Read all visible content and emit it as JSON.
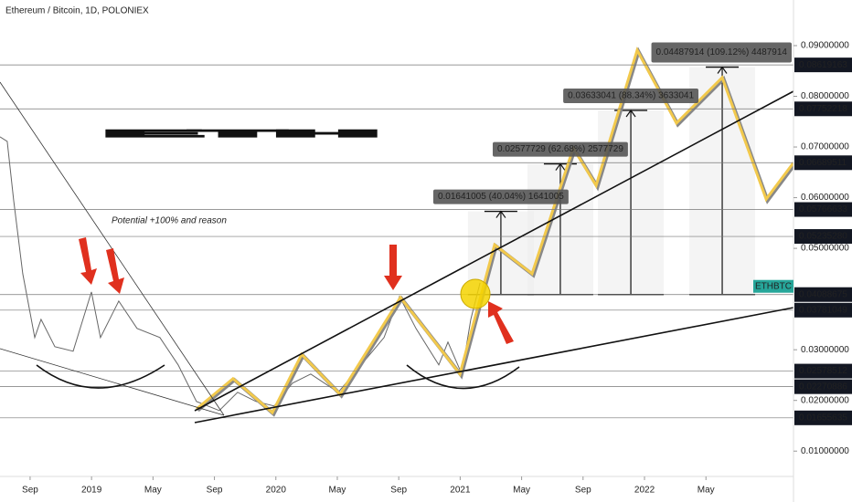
{
  "chart_data": {
    "type": "line",
    "title": "Ethereum / Bitcoin, 1D, POLONIEX",
    "headline": "ETH",
    "subtitle": "Potential +100% and reason",
    "symbol": "ETHBTC",
    "xlim": [
      -1.96,
      49.7
    ],
    "xticks": [
      {
        "value": 0,
        "label": "Sep"
      },
      {
        "value": 4,
        "label": "2019"
      },
      {
        "value": 8,
        "label": "May"
      },
      {
        "value": 12,
        "label": "Sep"
      },
      {
        "value": 16,
        "label": "2020"
      },
      {
        "value": 20,
        "label": "May"
      },
      {
        "value": 24,
        "label": "Sep"
      },
      {
        "value": 28,
        "label": "2021"
      },
      {
        "value": 32,
        "label": "May"
      },
      {
        "value": 36,
        "label": "Sep"
      },
      {
        "value": 40,
        "label": "2022"
      },
      {
        "value": 44,
        "label": "May"
      }
    ],
    "ylim": [
      0.005,
      0.099
    ],
    "yticks": [
      {
        "value": 0.01,
        "label": "0.01000000"
      },
      {
        "value": 0.02,
        "label": "0.02000000"
      },
      {
        "value": 0.03,
        "label": "0.03000000"
      },
      {
        "value": 0.05,
        "label": "0.05000000"
      },
      {
        "value": 0.06,
        "label": "0.06000000"
      },
      {
        "value": 0.07,
        "label": "0.07000000"
      },
      {
        "value": 0.08,
        "label": "0.08000000"
      },
      {
        "value": 0.09,
        "label": "0.09000000"
      }
    ],
    "grid": false,
    "levels": [
      {
        "value": 0.08619163,
        "label": "0.08619163"
      },
      {
        "value": 0.07752218,
        "label": "0.07752218"
      },
      {
        "value": 0.06689511,
        "label": "0.06689511"
      },
      {
        "value": 0.05766633,
        "label": "0.05766633"
      },
      {
        "value": 0.0523528,
        "label": "0.05235280"
      },
      {
        "value": 0.04088675,
        "label": "0.04088675"
      },
      {
        "value": 0.03781049,
        "label": "0.03781049"
      },
      {
        "value": 0.02578512,
        "label": "0.02578512"
      },
      {
        "value": 0.02270886,
        "label": "0.02270886"
      },
      {
        "value": 0.01655635,
        "label": "0.01655635"
      }
    ],
    "series": [
      {
        "color": "#666666",
        "x": [
          -1.96,
          -1.49,
          -1.07,
          -0.48,
          0.3,
          0.71,
          1.61,
          2.8,
          3.99,
          4.58,
          5.77,
          6.96,
          8.45,
          9.64,
          10.83,
          12.32,
          13.51,
          14.7,
          15.89,
          17.08,
          18.27,
          20.06,
          21.55,
          23.04,
          24.05,
          25.12,
          26.61,
          27.2,
          28.1,
          28.69,
          29.29
        ],
        "values": [
          0.072,
          0.0711,
          0.0594,
          0.045,
          0.0324,
          0.036,
          0.0306,
          0.0297,
          0.0414,
          0.0324,
          0.0396,
          0.0342,
          0.0324,
          0.027,
          0.0198,
          0.018,
          0.0216,
          0.0198,
          0.0189,
          0.0234,
          0.0252,
          0.0216,
          0.027,
          0.0324,
          0.0405,
          0.0342,
          0.027,
          0.0315,
          0.0252,
          0.036,
          0.0432
        ]
      },
      {
        "color": "#f2c94c",
        "x": [
          10.83,
          13.21,
          15.77,
          17.68,
          20.18,
          24.11,
          27.98,
          30.24,
          32.68,
          35.36,
          36.85,
          39.52,
          42.08,
          45.06,
          47.92,
          49.7
        ],
        "values": [
          0.0183,
          0.0243,
          0.0176,
          0.0291,
          0.0212,
          0.0403,
          0.0252,
          0.0507,
          0.045,
          0.0698,
          0.0624,
          0.0891,
          0.0747,
          0.0837,
          0.0597,
          0.0669
        ]
      }
    ],
    "measures": [
      {
        "label": "0.01641005 (40.04%) 1641005",
        "x": 30.65,
        "from": 0.04088675,
        "to": 0.0572968
      },
      {
        "label": "0.02577729 (62.68%) 2577729",
        "x": 34.52,
        "from": 0.04088675,
        "to": 0.06666404
      },
      {
        "label": "0.03633041 (88.34%) 3633041",
        "x": 39.11,
        "from": 0.04088675,
        "to": 0.07721716
      },
      {
        "label": "0.04487914 (109.12%) 4487914",
        "x": 45.06,
        "from": 0.04088675,
        "to": 0.08576589
      }
    ]
  }
}
